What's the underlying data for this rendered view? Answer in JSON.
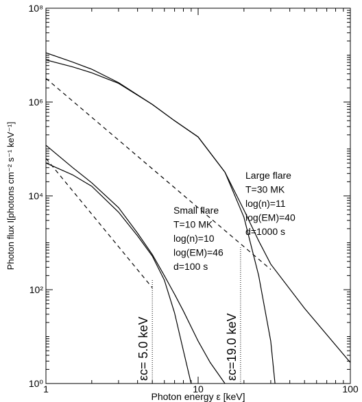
{
  "chart_data": {
    "type": "line",
    "xlabel": "Photon energy  ε [keV]",
    "ylabel": "Photon flux  I[photons cm⁻² s⁻¹ keV⁻¹]",
    "xscale": "log",
    "yscale": "log",
    "xlim": [
      1,
      100
    ],
    "ylim": [
      1,
      100000000
    ],
    "xticks": [
      1,
      10,
      100
    ],
    "yticks": [
      {
        "value": 1,
        "label": "10⁰"
      },
      {
        "value": 100,
        "label": "10²"
      },
      {
        "value": 10000,
        "label": "10⁴"
      },
      {
        "value": 1000000,
        "label": "10⁶"
      },
      {
        "value": 100000000,
        "label": "10⁸"
      }
    ],
    "color": "#000000",
    "series": [
      {
        "x": [
          1,
          1.5,
          2,
          3,
          5,
          7,
          10,
          15,
          20,
          25,
          30,
          50,
          100
        ],
        "values": [
          11200000,
          7100000,
          5000000,
          2600000,
          890000,
          400000,
          180000,
          32000,
          5000,
          1100,
          350,
          40,
          2.8
        ],
        "dashed": false
      },
      {
        "x": [
          1,
          1.5,
          2,
          3,
          5,
          7,
          10,
          15,
          20,
          25,
          30,
          32
        ],
        "values": [
          7900000,
          5600000,
          4200000,
          2500000,
          890000,
          400000,
          180000,
          32000,
          3500,
          200,
          8,
          1
        ],
        "dashed": false
      },
      {
        "x": [
          1,
          30
        ],
        "values": [
          3200000,
          270
        ],
        "dashed": true
      },
      {
        "x": [
          1,
          1.5,
          2,
          3,
          4,
          5,
          6,
          7,
          8,
          10,
          12,
          15
        ],
        "values": [
          120000,
          40000,
          19000,
          5600,
          1600,
          560,
          200,
          80,
          35,
          8,
          2.8,
          1
        ],
        "dashed": false
      },
      {
        "x": [
          1,
          1.5,
          2,
          3,
          4,
          5,
          6,
          7,
          8,
          9
        ],
        "values": [
          50000,
          28000,
          16000,
          4500,
          1400,
          520,
          160,
          32,
          5,
          1
        ],
        "dashed": false
      },
      {
        "x": [
          1,
          5
        ],
        "values": [
          63000,
          110
        ],
        "dashed": true
      }
    ],
    "cutoffs": [
      {
        "x": 5,
        "top": 160,
        "label": "εc= 5.0 keV"
      },
      {
        "x": 19,
        "top": 800,
        "label": "εc=19.0 keV"
      }
    ],
    "annotations": [
      {
        "lines": [
          "Large flare",
          "T=30 MK",
          "log(n)=11",
          "log(EM)=40",
          "d=1000 s"
        ]
      },
      {
        "lines": [
          "Small flare",
          "T=10 MK",
          "log(n)=10",
          "log(EM)=46",
          "d=100 s"
        ]
      }
    ]
  }
}
